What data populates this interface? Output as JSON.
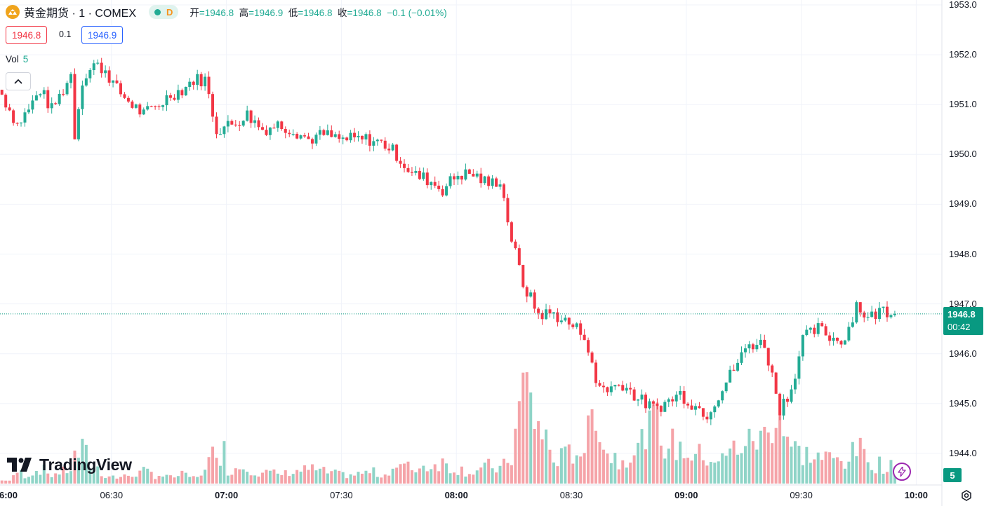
{
  "header": {
    "symbol": "黄金期货 · 1 · COMEX",
    "status_letter": "D",
    "ohlc": {
      "open_label": "开",
      "open": "=1946.8",
      "high_label": "高",
      "high": "=1946.9",
      "low_label": "低",
      "low": "=1946.8",
      "close_label": "收",
      "close": "=1946.8",
      "change": "−0.1 (−0.01%)"
    }
  },
  "trade": {
    "sell": "1946.8",
    "spread": "0.1",
    "buy": "1946.9"
  },
  "volume": {
    "label": "Vol",
    "value": "5"
  },
  "watermark": "TradingView",
  "price_tag": {
    "price": "1946.8",
    "countdown": "00:42"
  },
  "volume_tag": "5",
  "colors": {
    "up": "#22ab94",
    "down": "#f23645",
    "up_volume": "#8fd4c7",
    "down_volume": "#f5a3a8",
    "grid": "#f0f3fa",
    "price_line": "#089981"
  },
  "chart_data": {
    "type": "candlestick",
    "interval_minutes": 1,
    "y_ticks": [
      "1953.0",
      "1952.0",
      "1951.0",
      "1950.0",
      "1949.0",
      "1948.0",
      "1947.0",
      "1946.0",
      "1945.0",
      "1944.0"
    ],
    "y_range": [
      1943.6,
      1953.1
    ],
    "x_ticks": [
      {
        "label": "6:00",
        "bold": true
      },
      {
        "label": "06:30",
        "bold": false
      },
      {
        "label": "07:00",
        "bold": true
      },
      {
        "label": "07:30",
        "bold": false
      },
      {
        "label": "08:00",
        "bold": true
      },
      {
        "label": "08:30",
        "bold": false
      },
      {
        "label": "09:00",
        "bold": true
      },
      {
        "label": "09:30",
        "bold": false
      },
      {
        "label": "10:00",
        "bold": true
      }
    ],
    "last_price": 1946.8,
    "anchors": [
      [
        0,
        1951.2,
        1
      ],
      [
        2,
        1950.9,
        1
      ],
      [
        4,
        1950.6,
        4
      ],
      [
        7,
        1950.9,
        3
      ],
      [
        10,
        1951.3,
        5
      ],
      [
        13,
        1950.9,
        3
      ],
      [
        16,
        1951.3,
        4
      ],
      [
        18,
        1951.6,
        5
      ],
      [
        19,
        1950.4,
        9
      ],
      [
        21,
        1951.5,
        11
      ],
      [
        24,
        1951.8,
        6
      ],
      [
        27,
        1951.7,
        3
      ],
      [
        30,
        1951.3,
        2
      ],
      [
        34,
        1951.0,
        3
      ],
      [
        37,
        1950.8,
        4
      ],
      [
        41,
        1951.0,
        3
      ],
      [
        44,
        1951.2,
        2
      ],
      [
        47,
        1951.3,
        3
      ],
      [
        50,
        1951.5,
        2
      ],
      [
        53,
        1951.5,
        4
      ],
      [
        56,
        1950.5,
        15
      ],
      [
        60,
        1950.6,
        5
      ],
      [
        64,
        1950.8,
        6
      ],
      [
        68,
        1950.5,
        4
      ],
      [
        72,
        1950.6,
        3
      ],
      [
        76,
        1950.5,
        4
      ],
      [
        80,
        1950.3,
        5
      ],
      [
        84,
        1950.4,
        4
      ],
      [
        88,
        1950.3,
        3
      ],
      [
        92,
        1950.3,
        3
      ],
      [
        96,
        1950.3,
        4
      ],
      [
        100,
        1950.2,
        3
      ],
      [
        103,
        1950.0,
        6
      ],
      [
        107,
        1949.6,
        5
      ],
      [
        111,
        1949.5,
        6
      ],
      [
        115,
        1949.3,
        7
      ],
      [
        119,
        1949.6,
        5
      ],
      [
        123,
        1949.6,
        4
      ],
      [
        127,
        1949.4,
        6
      ],
      [
        130,
        1949.5,
        5
      ],
      [
        133,
        1948.3,
        9
      ],
      [
        136,
        1947.4,
        35
      ],
      [
        140,
        1946.8,
        20
      ],
      [
        144,
        1946.8,
        8
      ],
      [
        148,
        1946.6,
        10
      ],
      [
        152,
        1946.4,
        12
      ],
      [
        155,
        1945.4,
        30
      ],
      [
        158,
        1945.3,
        10
      ],
      [
        162,
        1945.4,
        8
      ],
      [
        166,
        1945.1,
        12
      ],
      [
        170,
        1944.9,
        22
      ],
      [
        173,
        1945.0,
        14
      ],
      [
        177,
        1945.2,
        12
      ],
      [
        180,
        1945.0,
        10
      ],
      [
        184,
        1944.8,
        9
      ],
      [
        188,
        1945.3,
        8
      ],
      [
        191,
        1945.7,
        12
      ],
      [
        195,
        1946.2,
        14
      ],
      [
        199,
        1946.2,
        16
      ],
      [
        203,
        1944.9,
        24
      ],
      [
        206,
        1945.3,
        12
      ],
      [
        209,
        1946.3,
        10
      ],
      [
        213,
        1946.5,
        9
      ],
      [
        217,
        1946.3,
        8
      ],
      [
        220,
        1946.3,
        8
      ],
      [
        223,
        1947.0,
        12
      ],
      [
        226,
        1946.7,
        8
      ],
      [
        230,
        1946.9,
        6
      ],
      [
        233,
        1946.8,
        5
      ]
    ]
  }
}
